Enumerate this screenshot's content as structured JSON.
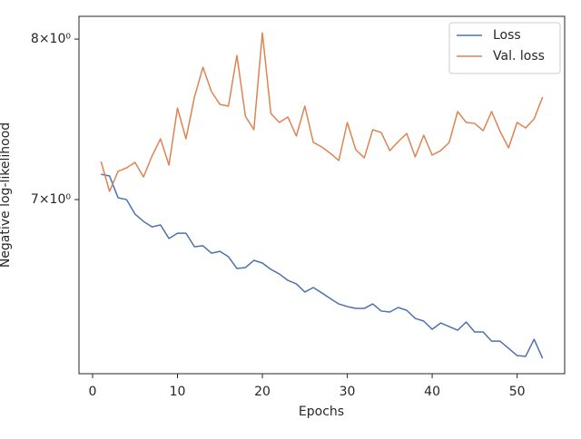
{
  "chart_data": {
    "type": "line",
    "xlabel": "Epochs",
    "ylabel": "Negative log-likelihood",
    "x": [
      1,
      2,
      3,
      4,
      5,
      6,
      7,
      8,
      9,
      10,
      11,
      12,
      13,
      14,
      15,
      16,
      17,
      18,
      19,
      20,
      21,
      22,
      23,
      24,
      25,
      26,
      27,
      28,
      29,
      30,
      31,
      32,
      33,
      34,
      35,
      36,
      37,
      38,
      39,
      40,
      41,
      42,
      43,
      44,
      45,
      46,
      47,
      48,
      49,
      50,
      51,
      52,
      53
    ],
    "series": [
      {
        "name": "Loss",
        "color": "#4c72b0",
        "values": [
          7.149,
          7.139,
          7.011,
          7.0,
          6.916,
          6.874,
          6.843,
          6.854,
          6.777,
          6.807,
          6.807,
          6.731,
          6.736,
          6.695,
          6.705,
          6.675,
          6.61,
          6.615,
          6.655,
          6.64,
          6.605,
          6.58,
          6.545,
          6.526,
          6.482,
          6.506,
          6.477,
          6.447,
          6.418,
          6.404,
          6.394,
          6.394,
          6.418,
          6.38,
          6.375,
          6.399,
          6.384,
          6.341,
          6.327,
          6.284,
          6.317,
          6.298,
          6.279,
          6.322,
          6.27,
          6.27,
          6.222,
          6.222,
          6.185,
          6.148,
          6.144,
          6.232,
          6.134
        ]
      },
      {
        "name": "Val. loss",
        "color": "#dd8452",
        "values": [
          7.225,
          7.048,
          7.166,
          7.187,
          7.22,
          7.133,
          7.258,
          7.363,
          7.204,
          7.554,
          7.363,
          7.623,
          7.815,
          7.658,
          7.577,
          7.566,
          7.892,
          7.503,
          7.419,
          8.042,
          7.52,
          7.464,
          7.498,
          7.38,
          7.566,
          7.341,
          7.313,
          7.275,
          7.231,
          7.464,
          7.297,
          7.247,
          7.419,
          7.402,
          7.291,
          7.346,
          7.396,
          7.253,
          7.385,
          7.264,
          7.291,
          7.341,
          7.532,
          7.464,
          7.458,
          7.413,
          7.532,
          7.408,
          7.308,
          7.464,
          7.43,
          7.486,
          7.623
        ]
      }
    ],
    "xlim": [
      -1.6,
      55.6
    ],
    "xticks": [
      0,
      10,
      20,
      30,
      40,
      50
    ],
    "ylim": [
      6.056,
      8.153
    ],
    "yscale": "log",
    "yticks": [
      {
        "value": 7,
        "label": "7×10⁰"
      },
      {
        "value": 8,
        "label": "8×10⁰"
      }
    ],
    "grid": false,
    "legend": "upper right"
  }
}
